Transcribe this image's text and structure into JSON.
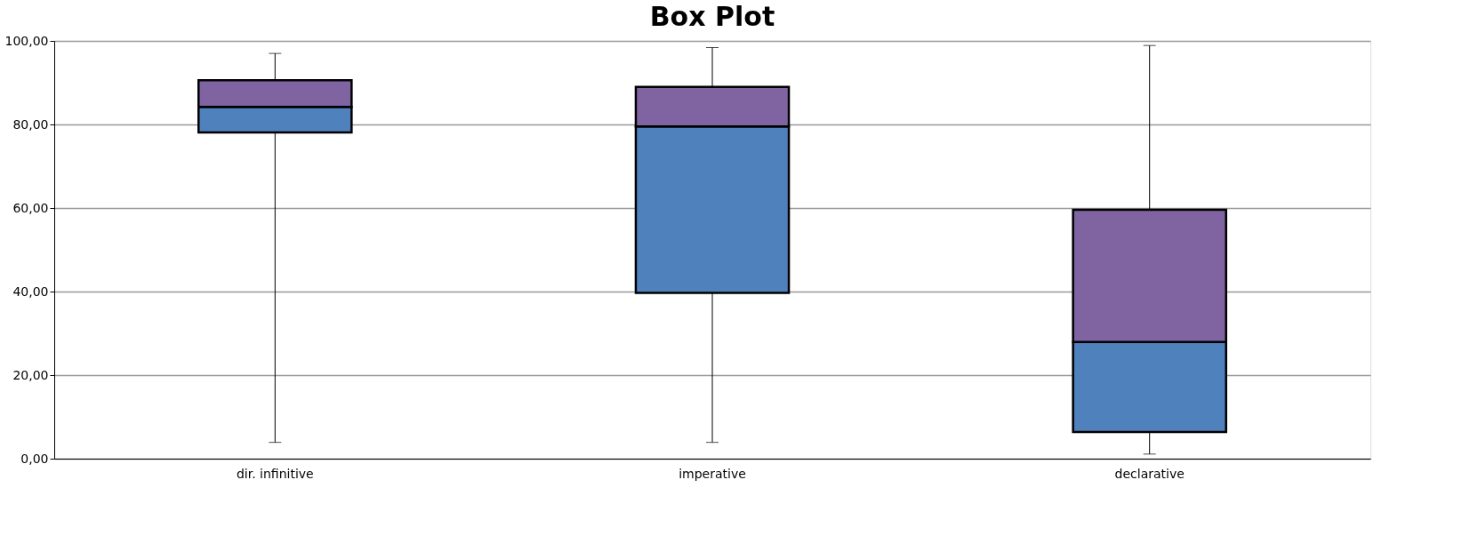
{
  "chart_data": {
    "type": "box",
    "title": "Box Plot",
    "categories": [
      "dir. infinitive",
      "imperative",
      "declarative"
    ],
    "boxes": [
      {
        "low": 3.9,
        "q1": 78.1,
        "median": 84.2,
        "q3": 90.6,
        "high": 97.0
      },
      {
        "low": 3.9,
        "q1": 39.7,
        "median": 79.5,
        "q3": 89.0,
        "high": 98.4
      },
      {
        "low": 1.1,
        "q1": 6.4,
        "median": 27.9,
        "q3": 59.6,
        "high": 98.9
      }
    ],
    "color": "#8064a2",
    "colors": [
      "#4f81bd",
      "#4f81bd",
      "#4f81bd"
    ],
    "ylim": [
      0,
      100
    ],
    "yticks": [
      {
        "value": 0,
        "label": "0,00"
      },
      {
        "value": 20,
        "label": "20,00"
      },
      {
        "value": 40,
        "label": "40,00"
      },
      {
        "value": 60,
        "label": "60,00"
      },
      {
        "value": 80,
        "label": "80,00"
      },
      {
        "value": 100,
        "label": "100,00"
      }
    ],
    "grid": "y"
  }
}
